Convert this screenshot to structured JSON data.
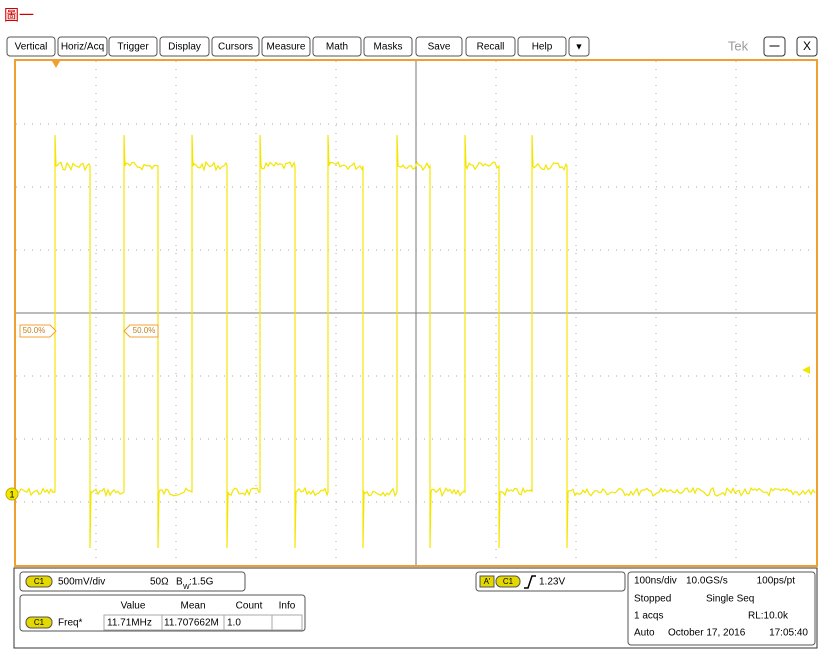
{
  "header": {
    "label": "圖一"
  },
  "toolbar": {
    "buttons": [
      "Vertical",
      "Horiz/Acq",
      "Trigger",
      "Display",
      "Cursors",
      "Measure",
      "Math",
      "Masks",
      "Save",
      "Recall",
      "Help"
    ],
    "dropdown": "▼",
    "brand": "Tek",
    "minimize": "—",
    "close": "X"
  },
  "scope": {
    "ref_markers": [
      "50.0%",
      "50.0%"
    ],
    "channel_marker": "1"
  },
  "status": {
    "vertical": {
      "channel": "C1",
      "scale": "500mV/div",
      "impedance": "50Ω",
      "bandwidth_prefix": "B",
      "bandwidth_sub": "W",
      "bandwidth": ":1.5G"
    },
    "trigger": {
      "mode": "A'",
      "channel": "C1",
      "level": "1.23V"
    },
    "measurements": {
      "headers": [
        "Value",
        "Mean",
        "Count",
        "Info"
      ],
      "rows": [
        {
          "channel": "C1",
          "name": "Freq*",
          "value": "11.71MHz",
          "mean": "11.707662M",
          "count": "1.0"
        }
      ]
    },
    "acquisition": {
      "timebase": "100ns/div",
      "sample_rate": "10.0GS/s",
      "resolution": "100ps/pt",
      "state": "Stopped",
      "mode": "Single Seq",
      "acqs": "1 acqs",
      "record_length": "RL:10.0k",
      "trigger_mode": "Auto",
      "date": "October 17, 2016",
      "time": "17:05:40"
    }
  }
}
